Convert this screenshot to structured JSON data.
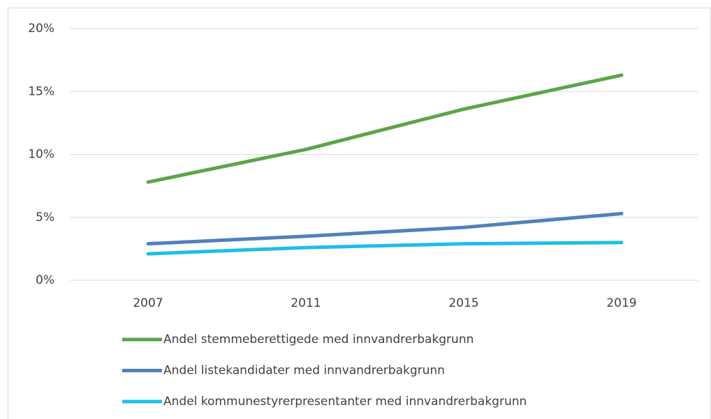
{
  "chart_data": {
    "type": "line",
    "categories": [
      "2007",
      "2011",
      "2015",
      "2019"
    ],
    "series": [
      {
        "name": "Andel stemmeberettigede med innvandrerbakgrunn",
        "color": "#5ba548",
        "values": [
          7.8,
          10.4,
          13.6,
          16.3
        ]
      },
      {
        "name": "Andel listekandidater med innvandrerbakgrunn",
        "color": "#4f81bd",
        "values": [
          2.9,
          3.5,
          4.2,
          5.3
        ]
      },
      {
        "name": "Andel kommunestyrerpresentanter med innvandrerbakgrunn",
        "color": "#1ebfe8",
        "values": [
          2.1,
          2.6,
          2.9,
          3.0
        ]
      }
    ],
    "ylim": [
      0,
      20
    ],
    "yticks": [
      {
        "value": 0,
        "label": "0%"
      },
      {
        "value": 5,
        "label": "5%"
      },
      {
        "value": 10,
        "label": "10%"
      },
      {
        "value": 15,
        "label": "15%"
      },
      {
        "value": 20,
        "label": "20%"
      }
    ],
    "grid": true,
    "legend": "bottom"
  }
}
